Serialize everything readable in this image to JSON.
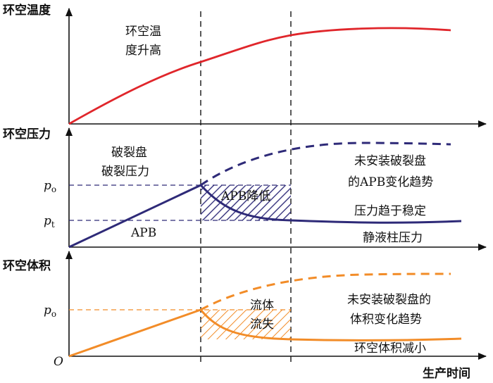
{
  "colors": {
    "temperature": "#e0262b",
    "pressure": "#2e2a78",
    "volume": "#f28c28",
    "axis": "#111111",
    "guide": "#000000"
  },
  "axes": {
    "temperature_title": "环空温度",
    "pressure_title": "环空压力",
    "volume_title": "环空体积",
    "x_title": "生产时间",
    "origin": "O"
  },
  "ticks": {
    "p_o": "p",
    "p_o_sub": "o",
    "p_t": "p",
    "p_t_sub": "t",
    "v_p_o": "p",
    "v_p_o_sub": "o"
  },
  "annotations": {
    "temp_rise_line1": "环空温",
    "temp_rise_line2": "度升高",
    "disk_line1": "破裂盘",
    "disk_line2": "破裂压力",
    "apb": "APB",
    "apb_drop": "APB降低",
    "no_disk_apb_line1": "未安装破裂盘",
    "no_disk_apb_line2": "的APB变化趋势",
    "pressure_stable": "压力趋于稳定",
    "hydrostatic": "静液柱压力",
    "fluid_loss_line1": "流体",
    "fluid_loss_line2": "流失",
    "no_disk_vol_line1": "未安装破裂盘的",
    "no_disk_vol_line2": "体积变化趋势",
    "volume_decrease": "环空体积减小"
  }
}
